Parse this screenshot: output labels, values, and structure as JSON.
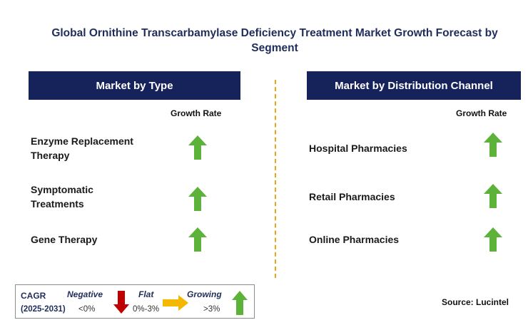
{
  "title": "Global Ornithine Transcarbamylase Deficiency Treatment Market Growth Forecast by Segment",
  "left": {
    "header": "Market by Type",
    "growth_label": "Growth Rate",
    "rows": [
      {
        "label": "Enzyme Replacement Therapy",
        "growth": "growing"
      },
      {
        "label": "Symptomatic Treatments",
        "growth": "growing"
      },
      {
        "label": "Gene Therapy",
        "growth": "growing"
      }
    ]
  },
  "right": {
    "header": "Market by Distribution Channel",
    "growth_label": "Growth Rate",
    "rows": [
      {
        "label": "Hospital Pharmacies",
        "growth": "growing"
      },
      {
        "label": "Retail Pharmacies",
        "growth": "growing"
      },
      {
        "label": "Online Pharmacies",
        "growth": "growing"
      }
    ]
  },
  "legend": {
    "cagr": "CAGR",
    "period": "(2025-2031)",
    "negative": {
      "label": "Negative",
      "range": "<0%",
      "icon": "down-arrow-icon",
      "color": "#c00000"
    },
    "flat": {
      "label": "Flat",
      "range": "0%-3%",
      "icon": "right-arrow-icon",
      "color": "#f5b800"
    },
    "growing": {
      "label": "Growing",
      "range": ">3%",
      "icon": "up-arrow-icon",
      "color": "#5db33a"
    }
  },
  "source": "Source: Lucintel"
}
